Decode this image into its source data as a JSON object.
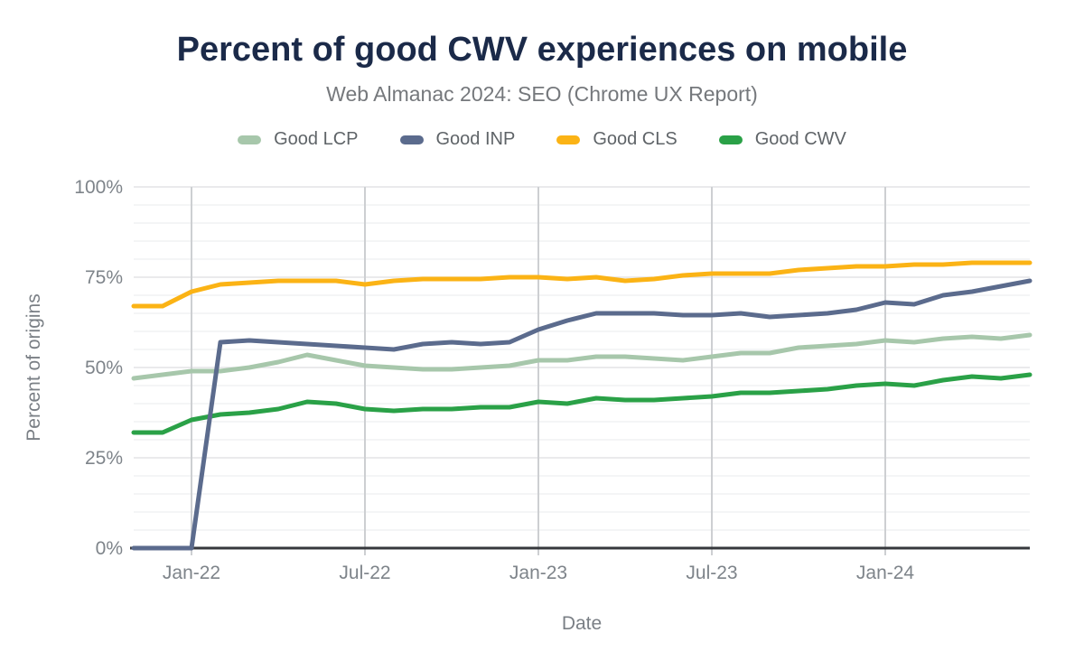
{
  "header": {
    "title": "Percent of good CWV experiences on mobile",
    "subtitle": "Web Almanac 2024: SEO (Chrome UX Report)"
  },
  "axes": {
    "x_label": "Date",
    "y_label": "Percent of origins",
    "y_tick_labels": [
      "0%",
      "25%",
      "50%",
      "75%",
      "100%"
    ],
    "x_tick_labels": [
      "Jan-22",
      "Jul-22",
      "Jan-23",
      "Jul-23",
      "Jan-24"
    ]
  },
  "colors": {
    "title": "#1b2a49",
    "subtitle": "#75787c",
    "legend_text": "#5f6468",
    "tick_label": "#7e848a",
    "axis_title": "#7a7f85",
    "axis_line": "#36383c",
    "grid_major": "#e3e4e6",
    "grid_minor": "#f1f2f3",
    "grid_vertical": "#cdcfd2",
    "background": "#ffffff"
  },
  "chart_data": {
    "type": "line",
    "title": "Percent of good CWV experiences on mobile",
    "subtitle": "Web Almanac 2024: SEO (Chrome UX Report)",
    "xlabel": "Date",
    "ylabel": "Percent of origins",
    "ylim": [
      0,
      100
    ],
    "y_tick_interval": 25,
    "y_minor_interval": 5,
    "grid": true,
    "legend_position": "top",
    "x": [
      "Nov-21",
      "Dec-21",
      "Jan-22",
      "Feb-22",
      "Mar-22",
      "Apr-22",
      "May-22",
      "Jun-22",
      "Jul-22",
      "Aug-22",
      "Sep-22",
      "Oct-22",
      "Nov-22",
      "Dec-22",
      "Jan-23",
      "Feb-23",
      "Mar-23",
      "Apr-23",
      "May-23",
      "Jun-23",
      "Jul-23",
      "Aug-23",
      "Sep-23",
      "Oct-23",
      "Nov-23",
      "Dec-23",
      "Jan-24",
      "Feb-24",
      "Mar-24",
      "Apr-24",
      "May-24",
      "Jun-24"
    ],
    "x_axis_ticks": [
      "Jan-22",
      "Jul-22",
      "Jan-23",
      "Jul-23",
      "Jan-24"
    ],
    "unit": "%",
    "series": [
      {
        "name": "Good LCP",
        "color": "#a7c7ab",
        "values": [
          47,
          48,
          49,
          49,
          50,
          51.5,
          53.5,
          52,
          50.5,
          50,
          49.5,
          49.5,
          50,
          50.5,
          52,
          52,
          53,
          53,
          52.5,
          52,
          53,
          54,
          54,
          55.5,
          56,
          56.5,
          57.5,
          57,
          58,
          58.5,
          58,
          59
        ]
      },
      {
        "name": "Good INP",
        "color": "#5b6b8d",
        "values": [
          0,
          0,
          0,
          57,
          57.5,
          57,
          56.5,
          56,
          55.5,
          55,
          56.5,
          57,
          56.5,
          57,
          60.5,
          63,
          65,
          65,
          65,
          64.5,
          64.5,
          65,
          64,
          64.5,
          65,
          66,
          68,
          67.5,
          70,
          71,
          72.5,
          74
        ]
      },
      {
        "name": "Good CLS",
        "color": "#fbb315",
        "values": [
          67,
          67,
          71,
          73,
          73.5,
          74,
          74,
          74,
          73,
          74,
          74.5,
          74.5,
          74.5,
          75,
          75,
          74.5,
          75,
          74,
          74.5,
          75.5,
          76,
          76,
          76,
          77,
          77.5,
          78,
          78,
          78.5,
          78.5,
          79,
          79,
          79
        ]
      },
      {
        "name": "Good CWV",
        "color": "#2aa147",
        "values": [
          32,
          32,
          35.5,
          37,
          37.5,
          38.5,
          40.5,
          40,
          38.5,
          38,
          38.5,
          38.5,
          39,
          39,
          40.5,
          40,
          41.5,
          41,
          41,
          41.5,
          42,
          43,
          43,
          43.5,
          44,
          45,
          45.5,
          45,
          46.5,
          47.5,
          47,
          48
        ]
      }
    ]
  }
}
